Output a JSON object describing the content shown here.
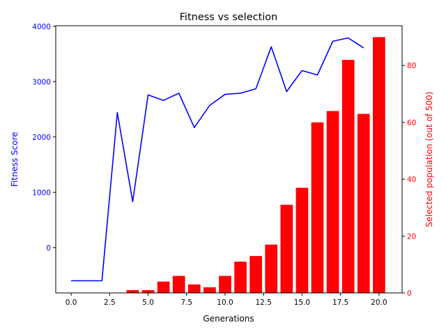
{
  "chart_data": {
    "type": "bar",
    "title": "Fitness vs selection",
    "xlabel": "Generations",
    "ylabel_left": "Fitness Score",
    "ylabel_right": "Selected population (out of 500)",
    "xlim": [
      -1,
      21.5
    ],
    "ylim_left": [
      -820,
      4010
    ],
    "ylim_right": [
      0,
      94
    ],
    "x_ticks": [
      0,
      2.5,
      5,
      7.5,
      10,
      12.5,
      15,
      17.5,
      20
    ],
    "x_tick_labels": [
      "0.0",
      "2.5",
      "5.0",
      "7.5",
      "10.0",
      "12.5",
      "15.0",
      "17.5",
      "20.0"
    ],
    "y_left_ticks": [
      0,
      1000,
      2000,
      3000,
      4000
    ],
    "y_left_tick_labels": [
      "0",
      "1000",
      "2000",
      "3000",
      "4000"
    ],
    "y_right_ticks": [
      0,
      20,
      40,
      60,
      80
    ],
    "y_right_tick_labels": [
      "0",
      "20",
      "40",
      "60",
      "80"
    ],
    "grid": false,
    "series": [
      {
        "kind": "line",
        "axis": "left",
        "color": "#0000ff",
        "x": [
          0,
          1,
          2,
          3,
          4,
          5,
          6,
          7,
          8,
          9,
          10,
          11,
          12,
          13,
          14,
          15,
          16,
          17,
          18,
          19
        ],
        "values": [
          -600,
          -600,
          -600,
          2440,
          830,
          2760,
          2660,
          2790,
          2170,
          2570,
          2770,
          2790,
          2870,
          3630,
          2820,
          3200,
          3120,
          3730,
          3790,
          3610
        ]
      },
      {
        "kind": "bar",
        "axis": "right",
        "color": "#ff0000",
        "x": [
          0,
          1,
          2,
          3,
          4,
          5,
          6,
          7,
          8,
          9,
          10,
          11,
          12,
          13,
          14,
          15,
          16,
          17,
          18,
          19,
          20
        ],
        "values": [
          0,
          0,
          0,
          0,
          1,
          1,
          4,
          6,
          3,
          2,
          6,
          11,
          13,
          17,
          31,
          37,
          60,
          64,
          82,
          63,
          90
        ]
      }
    ]
  }
}
